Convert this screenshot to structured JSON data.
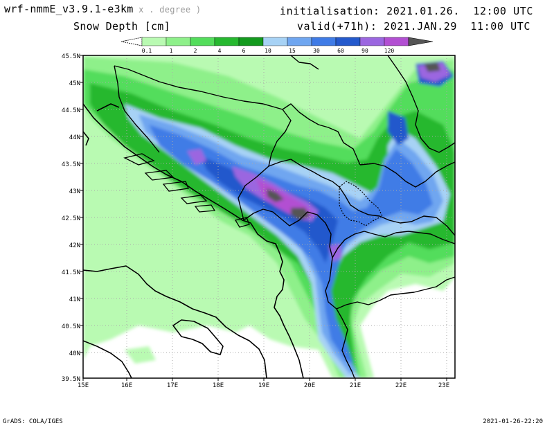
{
  "header": {
    "model": "wrf-nmmE_v3.9.1-e3km",
    "projection": "x . degree )",
    "field": "Snow Depth [cm]",
    "initialisation": "initialisation: 2021.01.26.  12:00 UTC",
    "valid": "valid(+71h): 2021.JAN.29  11:00 UTC"
  },
  "colorbar": {
    "labels": [
      "0.1",
      "1",
      "2",
      "4",
      "6",
      "10",
      "15",
      "30",
      "60",
      "90",
      "120"
    ],
    "colors": [
      "#b9fab2",
      "#8ef08a",
      "#53dd5b",
      "#26b82f",
      "#139a1e",
      "#a7d2f5",
      "#6fa6f0",
      "#3f7be6",
      "#2459cc",
      "#9b66e0",
      "#b24fd2",
      "#555555"
    ]
  },
  "axes": {
    "lon_labels": [
      "15E",
      "16E",
      "17E",
      "18E",
      "19E",
      "20E",
      "21E",
      "22E",
      "23E"
    ],
    "lat_labels": [
      "45.5N",
      "45N",
      "44.5N",
      "44N",
      "43.5N",
      "43N",
      "42.5N",
      "42N",
      "41.5N",
      "41N",
      "40.5N",
      "40N",
      "39.5N"
    ]
  },
  "footer": {
    "left": "GrADS: COLA/IGES",
    "right": "2021-01-26-22:20"
  }
}
